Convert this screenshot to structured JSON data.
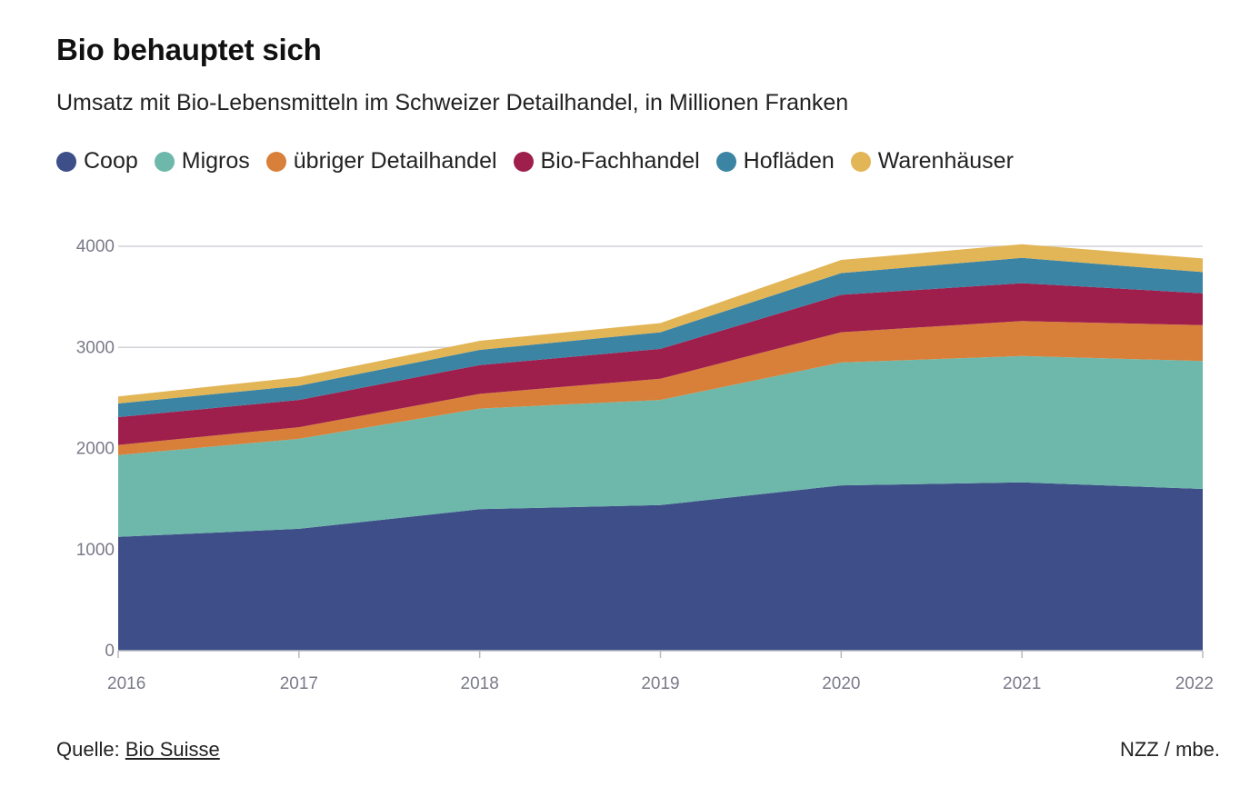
{
  "header": {
    "title": "Bio behauptet sich",
    "subtitle": "Umsatz mit Bio-Lebensmitteln im Schweizer Detailhandel, in Millionen Franken"
  },
  "footer": {
    "source_prefix": "Quelle: ",
    "source_link": "Bio Suisse",
    "credit": "NZZ / mbe."
  },
  "chart_data": {
    "type": "area",
    "stacked": true,
    "title": "Bio behauptet sich",
    "subtitle": "Umsatz mit Bio-Lebensmitteln im Schweizer Detailhandel, in Millionen Franken",
    "xlabel": "",
    "ylabel": "",
    "x": [
      "2016",
      "2017",
      "2018",
      "2019",
      "2020",
      "2021",
      "2022"
    ],
    "ylim": [
      0,
      4000
    ],
    "yticks": [
      "0",
      "1000",
      "2000",
      "3000",
      "4000"
    ],
    "grid": true,
    "legend_position": "top-left",
    "series": [
      {
        "name": "Coop",
        "color": "#3d4e88",
        "values": [
          1125,
          1205,
          1400,
          1440,
          1635,
          1665,
          1600
        ]
      },
      {
        "name": "Migros",
        "color": "#6db8ab",
        "values": [
          810,
          890,
          995,
          1040,
          1215,
          1250,
          1265
        ]
      },
      {
        "name": "übriger Detailhandel",
        "color": "#d8803a",
        "values": [
          100,
          115,
          145,
          210,
          300,
          345,
          355
        ]
      },
      {
        "name": "Bio-Fachhandel",
        "color": "#9e1e4c",
        "values": [
          275,
          270,
          285,
          295,
          370,
          375,
          315
        ]
      },
      {
        "name": "Hofläden",
        "color": "#3b84a4",
        "values": [
          135,
          140,
          150,
          165,
          215,
          250,
          210
        ]
      },
      {
        "name": "Warenhäuser",
        "color": "#e2b556",
        "values": [
          70,
          85,
          90,
          90,
          130,
          135,
          135
        ]
      }
    ]
  }
}
